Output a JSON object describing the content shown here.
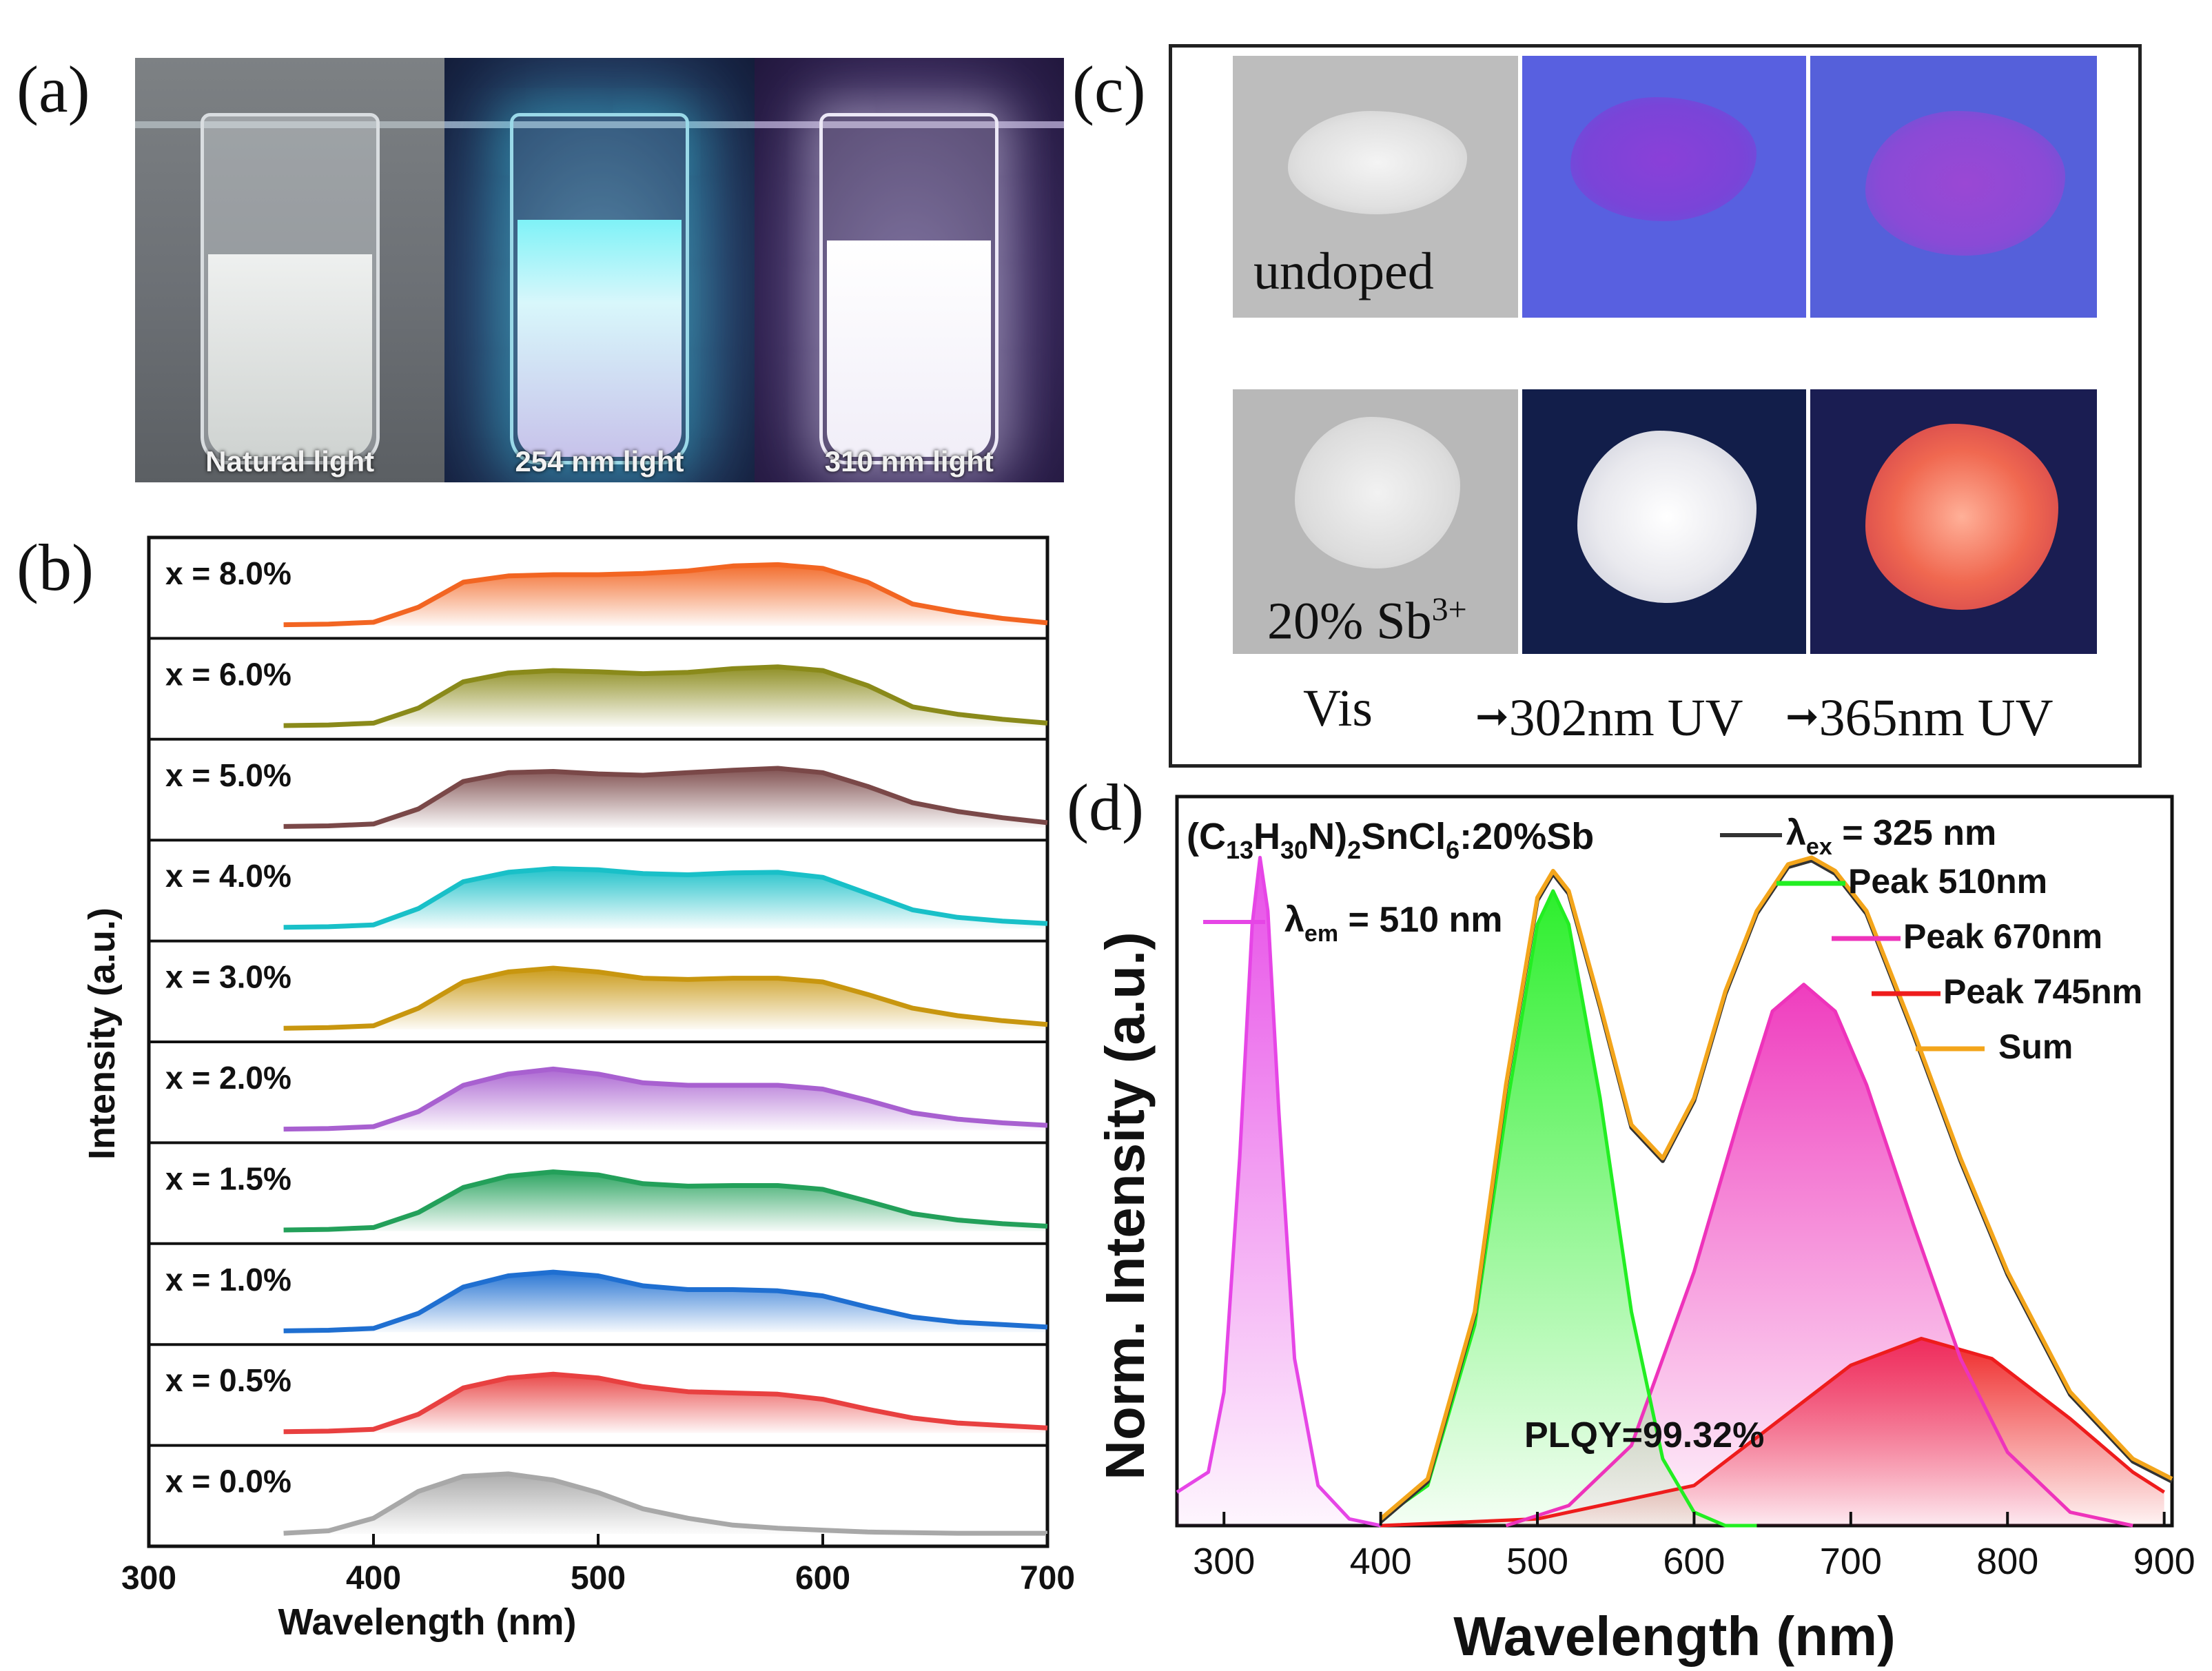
{
  "panel_labels": {
    "a": "(a)",
    "b": "(b)",
    "c": "(c)",
    "d": "(d)"
  },
  "photo_a": {
    "captions": [
      "Natural light",
      "254 nm light",
      "310 nm light"
    ]
  },
  "photo_c": {
    "row1_label": "undoped",
    "row2_label_prefix": "20% Sb",
    "row2_label_sup": "3+",
    "bottom_vis": "Vis",
    "bottom_302": "302nm UV",
    "bottom_365": "365nm UV"
  },
  "colors": {
    "x80": "#f26522",
    "x60": "#8a8a1a",
    "x50": "#7a4848",
    "x40": "#19c0c8",
    "x30": "#c8960f",
    "x20": "#a860d0",
    "x15": "#23a05a",
    "x10": "#1f6fd1",
    "x05": "#e84040",
    "x00": "#a8a8a8",
    "d_green": "#22ee22",
    "d_pink": "#ee33bb",
    "d_red": "#ee1c1c",
    "d_sum": "#f3a51b",
    "d_measured": "#333333",
    "d_magenta": "#e645e6"
  },
  "chart_data": [
    {
      "type": "area",
      "title": "",
      "xlabel": "Wavelength (nm)",
      "ylabel": "Intensity (a.u.)",
      "xlim": [
        300,
        700
      ],
      "xticks": [
        "300",
        "400",
        "500",
        "600",
        "700"
      ],
      "x": [
        360,
        380,
        400,
        420,
        440,
        460,
        480,
        500,
        520,
        540,
        560,
        580,
        600,
        620,
        640,
        660,
        680,
        700
      ],
      "series": [
        {
          "name": "x = 8.0%",
          "values": [
            0.02,
            0.03,
            0.06,
            0.3,
            0.7,
            0.8,
            0.82,
            0.82,
            0.84,
            0.88,
            0.96,
            0.98,
            0.92,
            0.7,
            0.35,
            0.22,
            0.12,
            0.05
          ]
        },
        {
          "name": "x = 6.0%",
          "values": [
            0.02,
            0.03,
            0.06,
            0.3,
            0.72,
            0.86,
            0.9,
            0.88,
            0.85,
            0.87,
            0.93,
            0.96,
            0.9,
            0.66,
            0.32,
            0.2,
            0.12,
            0.06
          ]
        },
        {
          "name": "x = 5.0%",
          "values": [
            0.02,
            0.03,
            0.06,
            0.3,
            0.74,
            0.88,
            0.9,
            0.86,
            0.84,
            0.88,
            0.92,
            0.95,
            0.88,
            0.66,
            0.4,
            0.26,
            0.16,
            0.08
          ]
        },
        {
          "name": "x = 4.0%",
          "values": [
            0.02,
            0.03,
            0.06,
            0.32,
            0.75,
            0.9,
            0.96,
            0.94,
            0.88,
            0.86,
            0.89,
            0.9,
            0.82,
            0.56,
            0.3,
            0.18,
            0.12,
            0.08
          ]
        },
        {
          "name": "x = 3.0%",
          "values": [
            0.02,
            0.03,
            0.06,
            0.34,
            0.76,
            0.92,
            0.98,
            0.92,
            0.82,
            0.8,
            0.82,
            0.82,
            0.76,
            0.56,
            0.34,
            0.22,
            0.14,
            0.08
          ]
        },
        {
          "name": "x = 2.0%",
          "values": [
            0.02,
            0.03,
            0.06,
            0.3,
            0.72,
            0.9,
            0.98,
            0.9,
            0.76,
            0.72,
            0.72,
            0.72,
            0.66,
            0.48,
            0.28,
            0.18,
            0.12,
            0.08
          ]
        },
        {
          "name": "x = 1.5%",
          "values": [
            0.02,
            0.03,
            0.06,
            0.3,
            0.7,
            0.88,
            0.95,
            0.9,
            0.76,
            0.72,
            0.73,
            0.73,
            0.67,
            0.48,
            0.28,
            0.18,
            0.12,
            0.08
          ]
        },
        {
          "name": "x = 1.0%",
          "values": [
            0.02,
            0.03,
            0.06,
            0.3,
            0.72,
            0.9,
            0.96,
            0.9,
            0.74,
            0.68,
            0.68,
            0.66,
            0.58,
            0.4,
            0.24,
            0.16,
            0.12,
            0.08
          ]
        },
        {
          "name": "x = 0.5%",
          "values": [
            0.02,
            0.03,
            0.06,
            0.3,
            0.72,
            0.88,
            0.94,
            0.88,
            0.74,
            0.66,
            0.64,
            0.62,
            0.54,
            0.38,
            0.24,
            0.16,
            0.12,
            0.08
          ]
        },
        {
          "name": "x = 0.0%",
          "values": [
            0.01,
            0.05,
            0.25,
            0.68,
            0.92,
            0.96,
            0.86,
            0.66,
            0.4,
            0.25,
            0.14,
            0.09,
            0.06,
            0.03,
            0.02,
            0.01,
            0.01,
            0.01
          ]
        }
      ]
    },
    {
      "type": "line",
      "title": "(C13H30N)2SnCl6:20%Sb",
      "xlabel": "Wavelength (nm)",
      "ylabel": "Norm. Intensity (a.u.)",
      "xlim": [
        270,
        905
      ],
      "ylim": [
        0,
        1.05
      ],
      "xticks": [
        "300",
        "400",
        "500",
        "600",
        "700",
        "800",
        "900"
      ],
      "plqy": "PLQY=99.32%",
      "legend": {
        "excitation": {
          "prefix": "λ",
          "sub": "em",
          "suffix": " = 510 nm"
        },
        "measured": {
          "prefix": "λ",
          "sub": "ex",
          "suffix": " = 325 nm"
        },
        "peak1": "Peak 510nm",
        "peak2": "Peak 670nm",
        "peak3": "Peak 745nm",
        "sum": "Sum"
      },
      "series": [
        {
          "name": "λem = 510 nm (excitation)",
          "x": [
            270,
            290,
            300,
            310,
            318,
            323,
            328,
            335,
            345,
            360,
            380,
            400
          ],
          "values": [
            0.05,
            0.08,
            0.2,
            0.55,
            0.9,
            1.0,
            0.92,
            0.62,
            0.25,
            0.06,
            0.01,
            0.0
          ]
        },
        {
          "name": "Peak 510nm",
          "x": [
            400,
            430,
            460,
            480,
            500,
            510,
            520,
            540,
            560,
            580,
            600,
            620,
            640
          ],
          "values": [
            0.01,
            0.06,
            0.3,
            0.62,
            0.9,
            0.95,
            0.9,
            0.64,
            0.32,
            0.1,
            0.02,
            0.0,
            0.0
          ]
        },
        {
          "name": "Peak 670nm",
          "x": [
            480,
            520,
            560,
            600,
            630,
            650,
            670,
            690,
            710,
            740,
            770,
            800,
            840,
            880
          ],
          "values": [
            0.0,
            0.03,
            0.12,
            0.38,
            0.62,
            0.77,
            0.81,
            0.77,
            0.66,
            0.45,
            0.25,
            0.11,
            0.02,
            0.0
          ]
        },
        {
          "name": "Peak 745nm",
          "x": [
            400,
            500,
            600,
            650,
            700,
            745,
            790,
            840,
            880,
            900
          ],
          "values": [
            0.0,
            0.01,
            0.06,
            0.15,
            0.24,
            0.28,
            0.25,
            0.16,
            0.08,
            0.05
          ]
        },
        {
          "name": "Sum",
          "x": [
            400,
            430,
            460,
            480,
            500,
            510,
            520,
            540,
            560,
            580,
            600,
            620,
            640,
            660,
            675,
            690,
            710,
            740,
            770,
            800,
            840,
            880,
            905
          ],
          "values": [
            0.01,
            0.07,
            0.32,
            0.66,
            0.94,
            0.98,
            0.95,
            0.78,
            0.6,
            0.55,
            0.64,
            0.8,
            0.92,
            0.99,
            1.0,
            0.98,
            0.92,
            0.74,
            0.55,
            0.38,
            0.2,
            0.1,
            0.07
          ]
        }
      ]
    }
  ]
}
